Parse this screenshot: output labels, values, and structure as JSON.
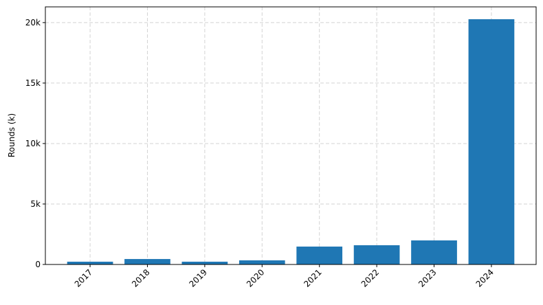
{
  "chart_data": {
    "type": "bar",
    "title": "",
    "xlabel": "",
    "ylabel": "Rounds (k)",
    "categories": [
      "2017",
      "2018",
      "2019",
      "2020",
      "2021",
      "2022",
      "2023",
      "2024"
    ],
    "values": [
      230,
      450,
      230,
      340,
      1480,
      1590,
      1990,
      20280
    ],
    "ylim": [
      0,
      21300
    ],
    "yticks": [
      0,
      5000,
      10000,
      15000,
      20000
    ],
    "ytick_labels": [
      "0",
      "5k",
      "10k",
      "15k",
      "20k"
    ],
    "grid": true,
    "bar_color": "#1f77b4",
    "xtick_rotation": 45
  }
}
